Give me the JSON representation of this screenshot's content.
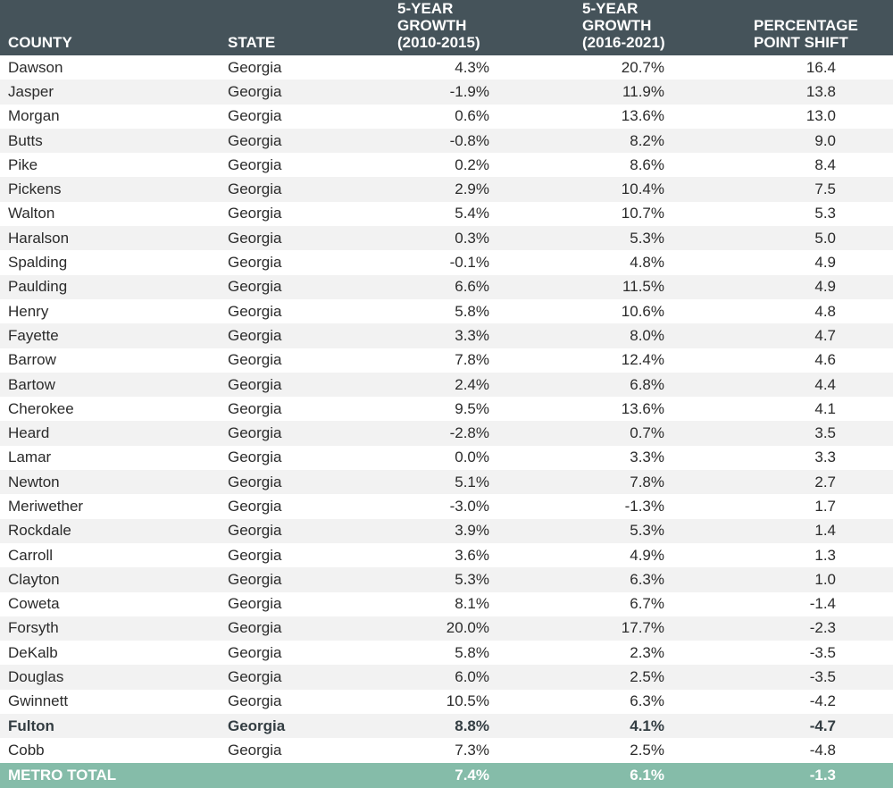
{
  "chart_data": {
    "type": "table",
    "columns": [
      "COUNTY",
      "STATE",
      "5-YEAR GROWTH",
      "(2010-2015)",
      "5-YEAR GROWTH",
      "(2016-2021)",
      "PERCENTAGE",
      "POINT SHIFT"
    ],
    "header": {
      "county": "COUNTY",
      "state": "STATE",
      "g1_line1": "5-YEAR GROWTH",
      "g1_line2": "(2010-2015)",
      "g2_line1": "5-YEAR GROWTH",
      "g2_line2": "(2016-2021)",
      "shift_line1": "PERCENTAGE",
      "shift_line2": "POINT SHIFT"
    },
    "rows": [
      {
        "county": "Dawson",
        "state": "Georgia",
        "g1": "4.3%",
        "g2": "20.7%",
        "shift": "16.4"
      },
      {
        "county": "Jasper",
        "state": "Georgia",
        "g1": "-1.9%",
        "g2": "11.9%",
        "shift": "13.8"
      },
      {
        "county": "Morgan",
        "state": "Georgia",
        "g1": "0.6%",
        "g2": "13.6%",
        "shift": "13.0"
      },
      {
        "county": "Butts",
        "state": "Georgia",
        "g1": "-0.8%",
        "g2": "8.2%",
        "shift": "9.0"
      },
      {
        "county": "Pike",
        "state": "Georgia",
        "g1": "0.2%",
        "g2": "8.6%",
        "shift": "8.4"
      },
      {
        "county": "Pickens",
        "state": "Georgia",
        "g1": "2.9%",
        "g2": "10.4%",
        "shift": "7.5"
      },
      {
        "county": "Walton",
        "state": "Georgia",
        "g1": "5.4%",
        "g2": "10.7%",
        "shift": "5.3"
      },
      {
        "county": "Haralson",
        "state": "Georgia",
        "g1": "0.3%",
        "g2": "5.3%",
        "shift": "5.0"
      },
      {
        "county": "Spalding",
        "state": "Georgia",
        "g1": "-0.1%",
        "g2": "4.8%",
        "shift": "4.9"
      },
      {
        "county": "Paulding",
        "state": "Georgia",
        "g1": "6.6%",
        "g2": "11.5%",
        "shift": "4.9"
      },
      {
        "county": "Henry",
        "state": "Georgia",
        "g1": "5.8%",
        "g2": "10.6%",
        "shift": "4.8"
      },
      {
        "county": "Fayette",
        "state": "Georgia",
        "g1": "3.3%",
        "g2": "8.0%",
        "shift": "4.7"
      },
      {
        "county": "Barrow",
        "state": "Georgia",
        "g1": "7.8%",
        "g2": "12.4%",
        "shift": "4.6"
      },
      {
        "county": "Bartow",
        "state": "Georgia",
        "g1": "2.4%",
        "g2": "6.8%",
        "shift": "4.4"
      },
      {
        "county": "Cherokee",
        "state": "Georgia",
        "g1": "9.5%",
        "g2": "13.6%",
        "shift": "4.1"
      },
      {
        "county": "Heard",
        "state": "Georgia",
        "g1": "-2.8%",
        "g2": "0.7%",
        "shift": "3.5"
      },
      {
        "county": "Lamar",
        "state": "Georgia",
        "g1": "0.0%",
        "g2": "3.3%",
        "shift": "3.3"
      },
      {
        "county": "Newton",
        "state": "Georgia",
        "g1": "5.1%",
        "g2": "7.8%",
        "shift": "2.7"
      },
      {
        "county": "Meriwether",
        "state": "Georgia",
        "g1": "-3.0%",
        "g2": "-1.3%",
        "shift": "1.7"
      },
      {
        "county": "Rockdale",
        "state": "Georgia",
        "g1": "3.9%",
        "g2": "5.3%",
        "shift": "1.4"
      },
      {
        "county": "Carroll",
        "state": "Georgia",
        "g1": "3.6%",
        "g2": "4.9%",
        "shift": "1.3"
      },
      {
        "county": "Clayton",
        "state": "Georgia",
        "g1": "5.3%",
        "g2": "6.3%",
        "shift": "1.0"
      },
      {
        "county": "Coweta",
        "state": "Georgia",
        "g1": "8.1%",
        "g2": "6.7%",
        "shift": "-1.4"
      },
      {
        "county": "Forsyth",
        "state": "Georgia",
        "g1": "20.0%",
        "g2": "17.7%",
        "shift": "-2.3"
      },
      {
        "county": "DeKalb",
        "state": "Georgia",
        "g1": "5.8%",
        "g2": "2.3%",
        "shift": "-3.5"
      },
      {
        "county": "Douglas",
        "state": "Georgia",
        "g1": "6.0%",
        "g2": "2.5%",
        "shift": "-3.5"
      },
      {
        "county": "Gwinnett",
        "state": "Georgia",
        "g1": "10.5%",
        "g2": "6.3%",
        "shift": "-4.2"
      },
      {
        "county": "Fulton",
        "state": "Georgia",
        "g1": "8.8%",
        "g2": "4.1%",
        "shift": "-4.7",
        "highlight": true
      },
      {
        "county": "Cobb",
        "state": "Georgia",
        "g1": "7.3%",
        "g2": "2.5%",
        "shift": "-4.8"
      }
    ],
    "total": {
      "label": "METRO TOTAL",
      "g1": "7.4%",
      "g2": "6.1%",
      "shift": "-1.3"
    }
  },
  "colors": {
    "header_bg": "#45535a",
    "total_bg": "#85bca9",
    "stripe": "#f2f2f2"
  }
}
